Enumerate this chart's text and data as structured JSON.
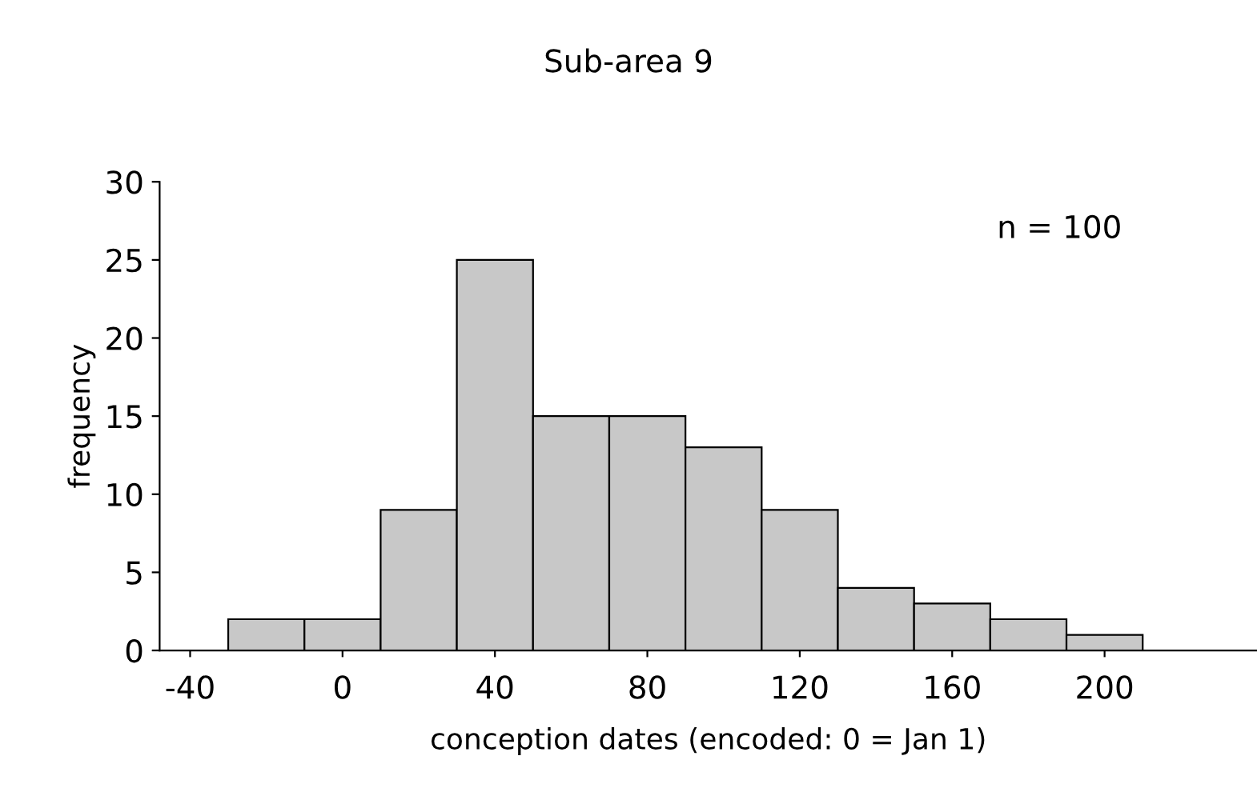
{
  "chart_data": {
    "type": "histogram",
    "title": "Sub-area 9",
    "xlabel": "conception dates (encoded: 0 = Jan 1)",
    "ylabel": "frequency",
    "bins": [
      -30,
      -10,
      10,
      30,
      50,
      70,
      90,
      110,
      130,
      150,
      170,
      190,
      210
    ],
    "values": [
      2,
      2,
      9,
      25,
      15,
      15,
      13,
      9,
      4,
      3,
      2,
      1
    ],
    "color": "#c8c8c8",
    "xlim": [
      -48,
      240
    ],
    "xticks": [
      -40,
      0,
      40,
      80,
      120,
      160,
      200
    ],
    "ylim": [
      0,
      30
    ],
    "yticks": [
      0,
      5,
      10,
      15,
      20,
      25,
      30
    ],
    "grid": false,
    "annotations": [
      "n = 100"
    ]
  }
}
